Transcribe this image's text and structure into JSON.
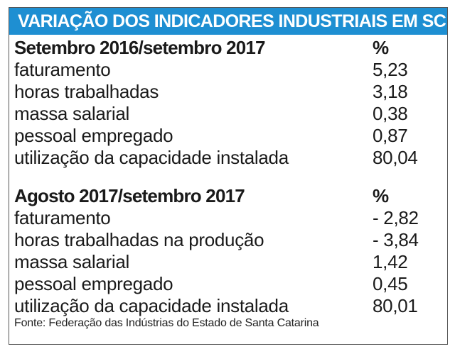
{
  "title": "VARIAÇÃO DOS INDICADORES INDUSTRIAIS EM SC",
  "colors": {
    "title_bg": "#1e8fd2",
    "title_text": "#ffffff",
    "border": "#555555"
  },
  "chart_data": {
    "type": "table",
    "title": "VARIAÇÃO DOS INDICADORES INDUSTRIAIS EM SC",
    "sections": [
      {
        "period": "Setembro 2016/setembro 2017",
        "unit": "%",
        "rows": [
          {
            "label": "faturamento",
            "value": "5,23"
          },
          {
            "label": "horas trabalhadas",
            "value": "3,18"
          },
          {
            "label": "massa salarial",
            "value": "0,38"
          },
          {
            "label": "pessoal empregado",
            "value": "0,87"
          },
          {
            "label": "utilização da capacidade instalada",
            "value": "80,04"
          }
        ]
      },
      {
        "period": "Agosto 2017/setembro 2017",
        "unit": "%",
        "rows": [
          {
            "label": "faturamento",
            "value": "- 2,82"
          },
          {
            "label": "horas trabalhadas na produção",
            "value": "- 3,84"
          },
          {
            "label": "massa salarial",
            "value": "1,42"
          },
          {
            "label": "pessoal empregado",
            "value": "0,45"
          },
          {
            "label": "utilização da capacidade instalada",
            "value": "80,01"
          }
        ]
      }
    ],
    "source": "Fonte: Federação das Indústrias do Estado de Santa Catarina"
  }
}
